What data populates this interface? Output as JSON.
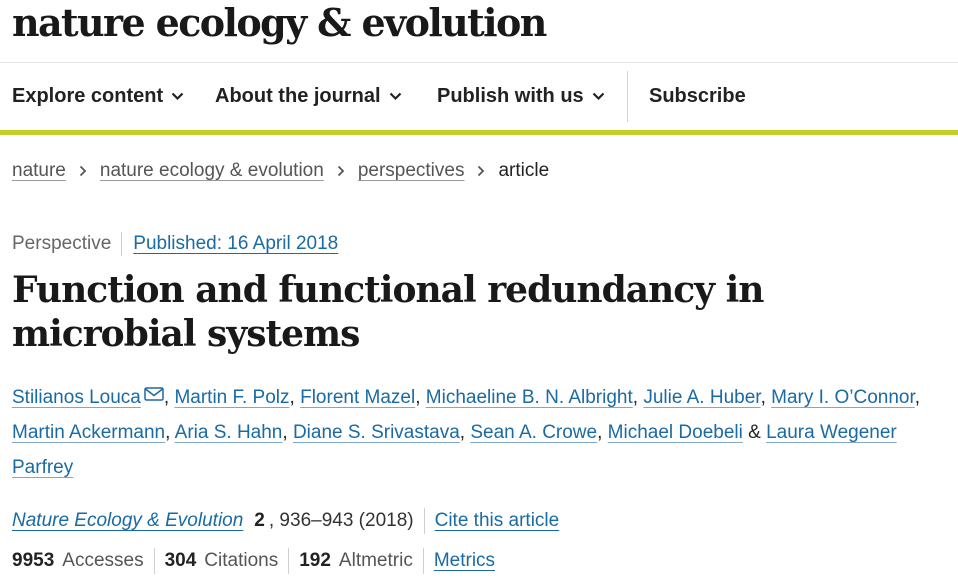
{
  "site": {
    "name": "nature ecology & evolution"
  },
  "nav": {
    "items": [
      {
        "label": "Explore content"
      },
      {
        "label": "About the journal"
      },
      {
        "label": "Publish with us"
      }
    ],
    "subscribe": "Subscribe"
  },
  "breadcrumb": {
    "items": [
      "nature",
      "nature ecology & evolution",
      "perspectives"
    ],
    "current": "article"
  },
  "article": {
    "type": "Perspective",
    "published": "Published: 16 April 2018",
    "title": "Function and functional redundancy in microbial systems",
    "authors": [
      "Stilianos Louca",
      "Martin F. Polz",
      "Florent Mazel",
      "Michaeline B. N. Albright",
      "Julie A. Huber",
      "Mary I. O’Connor",
      "Martin Ackermann",
      "Aria S. Hahn",
      "Diane S. Srivastava",
      "Sean A. Crowe",
      "Michael Doebeli",
      "Laura Wegener Parfrey"
    ],
    "author_conjunction": "&",
    "journal": "Nature Ecology & Evolution",
    "volume": "2",
    "pages": ", 936–943 (2018)",
    "cite_label": "Cite this article",
    "metrics": {
      "accesses_value": "9953",
      "accesses_label": "Accesses",
      "citations_value": "304",
      "citations_label": "Citations",
      "altmetric_value": "192",
      "altmetric_label": "Altmetric",
      "metrics_link": "Metrics"
    }
  },
  "colors": {
    "accent_bar": "#c3d02c",
    "link": "#1a6aa3"
  },
  "icons": {
    "nav_dropdown": "chevron-down-icon",
    "breadcrumb_separator": "chevron-right-icon",
    "corresponding_author": "envelope-icon"
  }
}
